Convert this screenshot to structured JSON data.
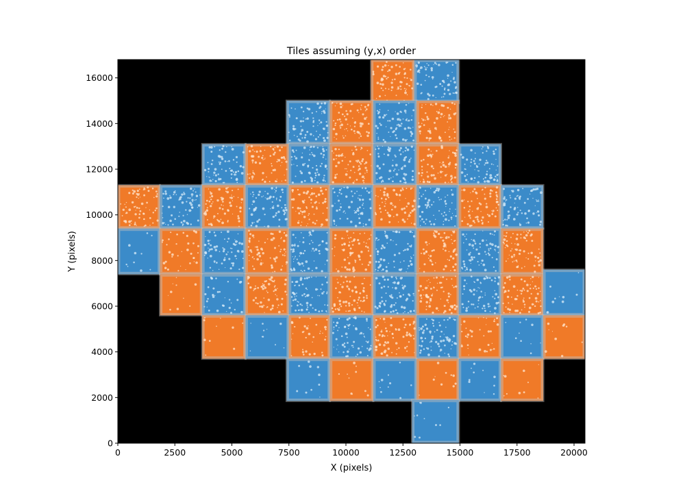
{
  "chart_data": {
    "type": "heatmap",
    "title": "Tiles assuming (y,x) order",
    "xlabel": "X (pixels)",
    "ylabel": "Y (pixels)",
    "xlim": [
      0,
      20480
    ],
    "ylim": [
      0,
      16800
    ],
    "xticks": [
      0,
      2500,
      5000,
      7500,
      10000,
      12500,
      15000,
      17500,
      20000
    ],
    "yticks": [
      0,
      2000,
      4000,
      6000,
      8000,
      10000,
      12000,
      14000,
      16000
    ],
    "background_color": "#000000",
    "colors": {
      "blue": "#3b8bc9",
      "orange": "#f07a28"
    },
    "tiles": [
      {
        "x0": 11100,
        "x1": 13000,
        "y0": 14900,
        "y1": 16800,
        "color": "orange",
        "texture": "dense"
      },
      {
        "x0": 13000,
        "x1": 14950,
        "y0": 14900,
        "y1": 16800,
        "color": "blue",
        "texture": "dense"
      },
      {
        "x0": 7400,
        "x1": 9300,
        "y0": 13100,
        "y1": 15000,
        "color": "blue",
        "texture": "dense"
      },
      {
        "x0": 9300,
        "x1": 11200,
        "y0": 13100,
        "y1": 15000,
        "color": "orange",
        "texture": "dense"
      },
      {
        "x0": 11200,
        "x1": 13100,
        "y0": 13100,
        "y1": 15000,
        "color": "blue",
        "texture": "dense"
      },
      {
        "x0": 13100,
        "x1": 14950,
        "y0": 13100,
        "y1": 15000,
        "color": "orange",
        "texture": "dense"
      },
      {
        "x0": 3700,
        "x1": 5600,
        "y0": 11300,
        "y1": 13100,
        "color": "blue",
        "texture": "dense"
      },
      {
        "x0": 5600,
        "x1": 7500,
        "y0": 11300,
        "y1": 13100,
        "color": "orange",
        "texture": "dense"
      },
      {
        "x0": 7500,
        "x1": 9300,
        "y0": 11300,
        "y1": 13100,
        "color": "blue",
        "texture": "dense"
      },
      {
        "x0": 9300,
        "x1": 11200,
        "y0": 11300,
        "y1": 13100,
        "color": "orange",
        "texture": "dense"
      },
      {
        "x0": 11200,
        "x1": 13100,
        "y0": 11300,
        "y1": 13100,
        "color": "blue",
        "texture": "dense"
      },
      {
        "x0": 13100,
        "x1": 14950,
        "y0": 11300,
        "y1": 13100,
        "color": "orange",
        "texture": "dense"
      },
      {
        "x0": 14950,
        "x1": 16800,
        "y0": 11300,
        "y1": 13100,
        "color": "blue",
        "texture": "dense"
      },
      {
        "x0": 0,
        "x1": 1850,
        "y0": 9400,
        "y1": 11300,
        "color": "orange",
        "texture": "dense"
      },
      {
        "x0": 1850,
        "x1": 3700,
        "y0": 9400,
        "y1": 11300,
        "color": "blue",
        "texture": "dense"
      },
      {
        "x0": 3700,
        "x1": 5600,
        "y0": 9400,
        "y1": 11300,
        "color": "orange",
        "texture": "dense"
      },
      {
        "x0": 5600,
        "x1": 7500,
        "y0": 9400,
        "y1": 11300,
        "color": "blue",
        "texture": "dense"
      },
      {
        "x0": 7500,
        "x1": 9300,
        "y0": 9400,
        "y1": 11300,
        "color": "orange",
        "texture": "dense"
      },
      {
        "x0": 9300,
        "x1": 11200,
        "y0": 9400,
        "y1": 11300,
        "color": "blue",
        "texture": "dense"
      },
      {
        "x0": 11200,
        "x1": 13100,
        "y0": 9400,
        "y1": 11300,
        "color": "orange",
        "texture": "dense"
      },
      {
        "x0": 13100,
        "x1": 14950,
        "y0": 9400,
        "y1": 11300,
        "color": "blue",
        "texture": "dense"
      },
      {
        "x0": 14950,
        "x1": 16800,
        "y0": 9400,
        "y1": 11300,
        "color": "orange",
        "texture": "dense"
      },
      {
        "x0": 16800,
        "x1": 18650,
        "y0": 9400,
        "y1": 11300,
        "color": "blue",
        "texture": "dense"
      },
      {
        "x0": 0,
        "x1": 1850,
        "y0": 7400,
        "y1": 9400,
        "color": "blue",
        "texture": "sparse"
      },
      {
        "x0": 1850,
        "x1": 3700,
        "y0": 7400,
        "y1": 9400,
        "color": "orange",
        "texture": "medium"
      },
      {
        "x0": 3700,
        "x1": 5600,
        "y0": 7400,
        "y1": 9400,
        "color": "blue",
        "texture": "dense"
      },
      {
        "x0": 5600,
        "x1": 7500,
        "y0": 7400,
        "y1": 9400,
        "color": "orange",
        "texture": "dense"
      },
      {
        "x0": 7500,
        "x1": 9300,
        "y0": 7400,
        "y1": 9400,
        "color": "blue",
        "texture": "dense"
      },
      {
        "x0": 9300,
        "x1": 11200,
        "y0": 7400,
        "y1": 9400,
        "color": "orange",
        "texture": "dense"
      },
      {
        "x0": 11200,
        "x1": 13100,
        "y0": 7400,
        "y1": 9400,
        "color": "blue",
        "texture": "dense"
      },
      {
        "x0": 13100,
        "x1": 14950,
        "y0": 7400,
        "y1": 9400,
        "color": "orange",
        "texture": "dense"
      },
      {
        "x0": 14950,
        "x1": 16800,
        "y0": 7400,
        "y1": 9400,
        "color": "blue",
        "texture": "dense"
      },
      {
        "x0": 16800,
        "x1": 18650,
        "y0": 7400,
        "y1": 9400,
        "color": "orange",
        "texture": "dense"
      },
      {
        "x0": 1850,
        "x1": 3700,
        "y0": 5600,
        "y1": 7400,
        "color": "orange",
        "texture": "sparse"
      },
      {
        "x0": 3700,
        "x1": 5600,
        "y0": 5600,
        "y1": 7400,
        "color": "blue",
        "texture": "medium"
      },
      {
        "x0": 5600,
        "x1": 7500,
        "y0": 5600,
        "y1": 7400,
        "color": "orange",
        "texture": "dense"
      },
      {
        "x0": 7500,
        "x1": 9300,
        "y0": 5600,
        "y1": 7400,
        "color": "blue",
        "texture": "dense"
      },
      {
        "x0": 9300,
        "x1": 11200,
        "y0": 5600,
        "y1": 7400,
        "color": "orange",
        "texture": "dense"
      },
      {
        "x0": 11200,
        "x1": 13100,
        "y0": 5600,
        "y1": 7400,
        "color": "blue",
        "texture": "dense"
      },
      {
        "x0": 13100,
        "x1": 14950,
        "y0": 5600,
        "y1": 7400,
        "color": "orange",
        "texture": "dense"
      },
      {
        "x0": 14950,
        "x1": 16800,
        "y0": 5600,
        "y1": 7400,
        "color": "blue",
        "texture": "dense"
      },
      {
        "x0": 16800,
        "x1": 18650,
        "y0": 5600,
        "y1": 7400,
        "color": "orange",
        "texture": "dense"
      },
      {
        "x0": 18650,
        "x1": 20480,
        "y0": 5600,
        "y1": 7600,
        "color": "blue",
        "texture": "sparse"
      },
      {
        "x0": 3700,
        "x1": 5600,
        "y0": 3700,
        "y1": 5600,
        "color": "orange",
        "texture": "sparse"
      },
      {
        "x0": 5600,
        "x1": 7500,
        "y0": 3700,
        "y1": 5600,
        "color": "blue",
        "texture": "sparse"
      },
      {
        "x0": 7500,
        "x1": 9300,
        "y0": 3700,
        "y1": 5600,
        "color": "orange",
        "texture": "medium"
      },
      {
        "x0": 9300,
        "x1": 11200,
        "y0": 3700,
        "y1": 5600,
        "color": "blue",
        "texture": "dense"
      },
      {
        "x0": 11200,
        "x1": 13100,
        "y0": 3700,
        "y1": 5600,
        "color": "orange",
        "texture": "dense"
      },
      {
        "x0": 13100,
        "x1": 14950,
        "y0": 3700,
        "y1": 5600,
        "color": "blue",
        "texture": "dense"
      },
      {
        "x0": 14950,
        "x1": 16800,
        "y0": 3700,
        "y1": 5600,
        "color": "orange",
        "texture": "medium"
      },
      {
        "x0": 16800,
        "x1": 18650,
        "y0": 3700,
        "y1": 5600,
        "color": "blue",
        "texture": "sparse"
      },
      {
        "x0": 18650,
        "x1": 20480,
        "y0": 3700,
        "y1": 5600,
        "color": "orange",
        "texture": "sparse"
      },
      {
        "x0": 7400,
        "x1": 9300,
        "y0": 1850,
        "y1": 3700,
        "color": "blue",
        "texture": "sparse"
      },
      {
        "x0": 9300,
        "x1": 11200,
        "y0": 1850,
        "y1": 3700,
        "color": "orange",
        "texture": "sparse"
      },
      {
        "x0": 11200,
        "x1": 13100,
        "y0": 1850,
        "y1": 3700,
        "color": "blue",
        "texture": "sparse"
      },
      {
        "x0": 13100,
        "x1": 14950,
        "y0": 1850,
        "y1": 3700,
        "color": "orange",
        "texture": "sparse"
      },
      {
        "x0": 14950,
        "x1": 16800,
        "y0": 1850,
        "y1": 3700,
        "color": "blue",
        "texture": "sparse"
      },
      {
        "x0": 16800,
        "x1": 18650,
        "y0": 1850,
        "y1": 3700,
        "color": "orange",
        "texture": "sparse"
      },
      {
        "x0": 12900,
        "x1": 14950,
        "y0": 0,
        "y1": 1900,
        "color": "blue",
        "texture": "sparse"
      }
    ]
  }
}
